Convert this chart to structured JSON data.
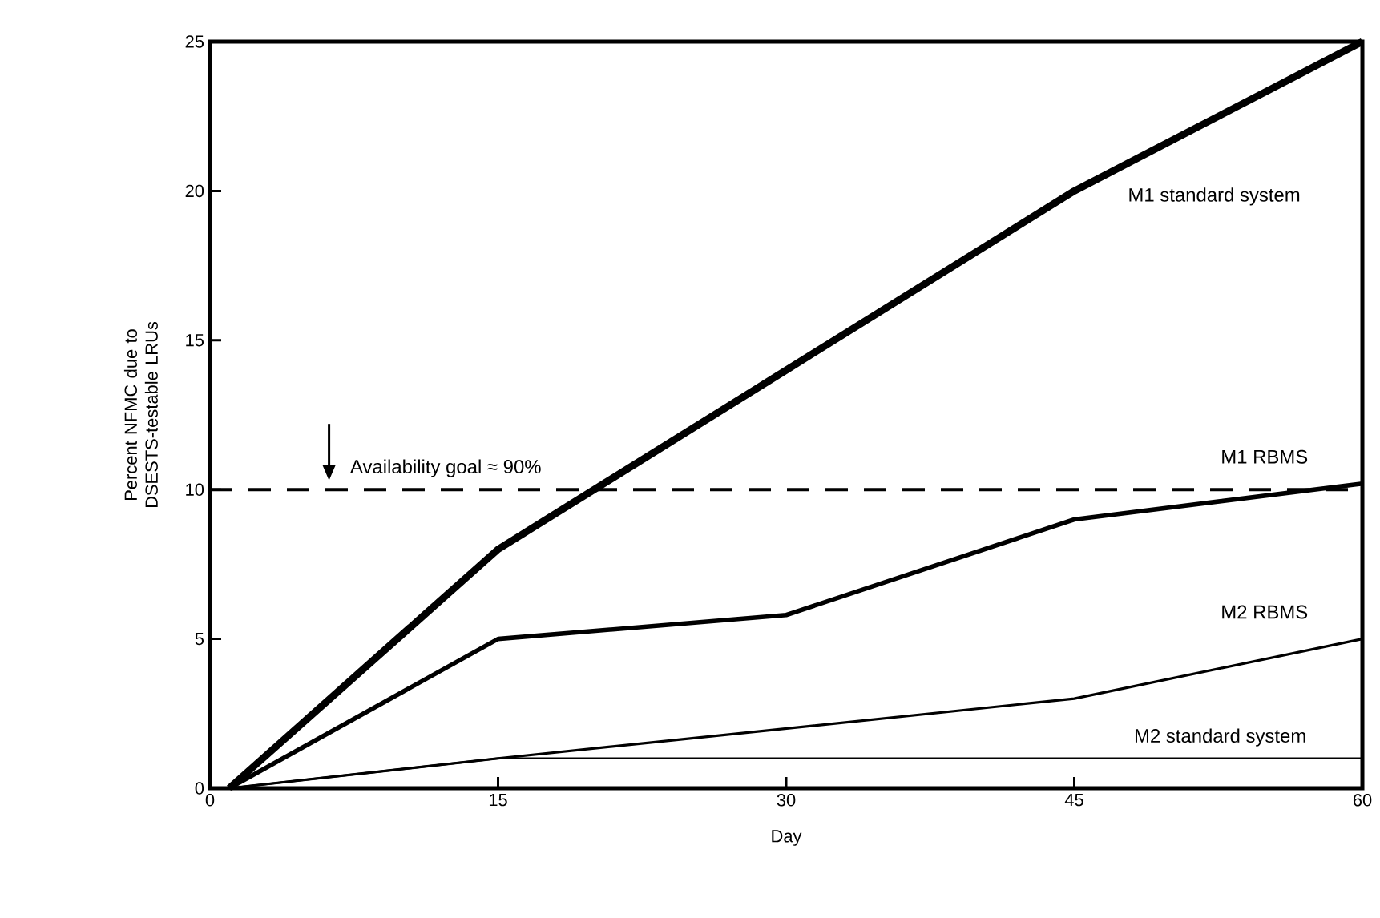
{
  "chart_data": {
    "type": "line",
    "xlabel": "Day",
    "ylabel": "Percent NFMC due to DSESTS-testable LRUs",
    "x": [
      1,
      15,
      30,
      45,
      60
    ],
    "series": [
      {
        "name": "M1 standard system",
        "color": "#000000",
        "values": [
          0,
          8,
          14,
          20,
          25
        ]
      },
      {
        "name": "M1 RBMS",
        "color": "#000000",
        "values": [
          0,
          5,
          5.8,
          9,
          10.2
        ]
      },
      {
        "name": "M2 RBMS",
        "color": "#000000",
        "values": [
          0,
          1,
          2,
          3,
          5
        ]
      },
      {
        "name": "M2 standard system",
        "color": "#000000",
        "values": [
          0,
          1,
          1,
          1,
          1
        ]
      }
    ],
    "ref_lines": [
      {
        "axis": "y",
        "value": 10,
        "label": "Availability goal ≈ 90%",
        "line_style": "dashed",
        "color": "#000000"
      }
    ],
    "xlim": [
      0,
      60
    ],
    "xticks": [
      0,
      15,
      30,
      45,
      60
    ],
    "ylim": [
      0,
      25
    ],
    "yticks": [
      0,
      5,
      10,
      15,
      20,
      25
    ]
  }
}
